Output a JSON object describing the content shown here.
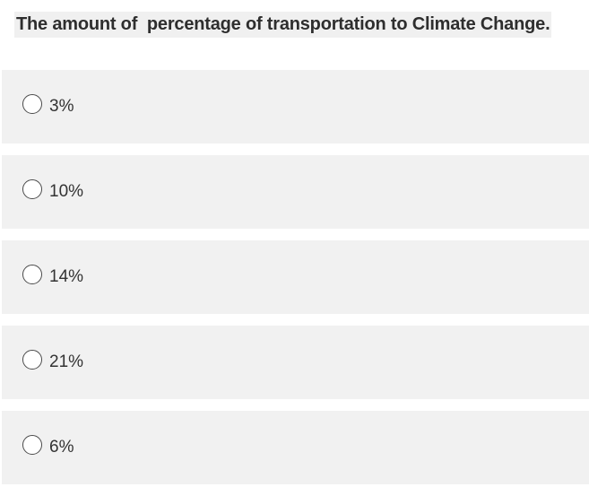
{
  "question": {
    "text": "The amount of  percentage of transportation to Climate Change."
  },
  "options": [
    {
      "label": "3%"
    },
    {
      "label": "10%"
    },
    {
      "label": "14%"
    },
    {
      "label": "21%"
    },
    {
      "label": "6%"
    }
  ]
}
